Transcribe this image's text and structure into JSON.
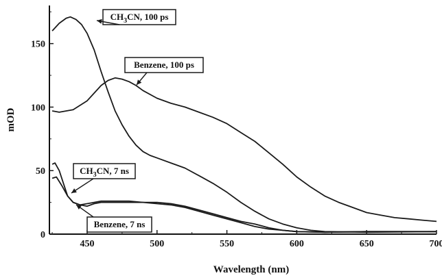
{
  "chart_data": {
    "type": "line",
    "title": "",
    "xlabel": "Wavelength (nm)",
    "ylabel": "mOD",
    "xlim": [
      423,
      700
    ],
    "ylim": [
      0,
      180
    ],
    "xticks": [
      450,
      500,
      550,
      600,
      650,
      700
    ],
    "yticks": [
      0,
      50,
      100,
      150
    ],
    "grid": false,
    "colors": {
      "line": "#1a1a1a",
      "background": "#ffffff"
    },
    "annotations": [
      {
        "id": "ann-ch3cn-100ps",
        "parts": [
          [
            "CH",
            false
          ],
          [
            "3",
            true
          ],
          [
            "CN, 100 ps",
            false
          ]
        ]
      },
      {
        "id": "ann-benzene-100ps",
        "parts": [
          [
            "Benzene, 100 ps",
            false
          ]
        ]
      },
      {
        "id": "ann-ch3cn-7ns",
        "parts": [
          [
            "CH",
            false
          ],
          [
            "3",
            true
          ],
          [
            "CN, 7 ns",
            false
          ]
        ]
      },
      {
        "id": "ann-benzene-7ns",
        "parts": [
          [
            "Benzene, 7 ns",
            false
          ]
        ]
      }
    ],
    "series": [
      {
        "id": "ch3cn-100ps",
        "x": [
          425,
          430,
          435,
          438,
          442,
          446,
          450,
          455,
          460,
          465,
          470,
          475,
          480,
          485,
          490,
          495,
          500,
          510,
          520,
          530,
          540,
          550,
          560,
          570,
          580,
          590,
          600,
          610,
          620,
          650,
          700
        ],
        "y": [
          160,
          166,
          170,
          171,
          169,
          165,
          158,
          145,
          128,
          112,
          97,
          86,
          77,
          70,
          65,
          62,
          60,
          56,
          52,
          46,
          40,
          33,
          25,
          18,
          12,
          8,
          5,
          3,
          2,
          1.5,
          2
        ]
      },
      {
        "id": "benzene-100ps",
        "x": [
          425,
          430,
          440,
          450,
          455,
          460,
          465,
          470,
          475,
          480,
          485,
          490,
          500,
          510,
          520,
          530,
          540,
          550,
          560,
          570,
          580,
          590,
          600,
          610,
          620,
          630,
          640,
          650,
          660,
          670,
          680,
          690,
          700
        ],
        "y": [
          97,
          96,
          98,
          105,
          111,
          117,
          121,
          123,
          122,
          120,
          117,
          113,
          107,
          103,
          100,
          96,
          92,
          87,
          80,
          73,
          64,
          55,
          45,
          37,
          30,
          25,
          21,
          17,
          15,
          13,
          12,
          11,
          10
        ]
      },
      {
        "id": "ch3cn-7ns",
        "x": [
          425,
          427,
          430,
          433,
          436,
          440,
          445,
          450,
          455,
          460,
          470,
          480,
          490,
          500,
          510,
          520,
          530,
          540,
          550,
          560,
          570,
          580,
          590,
          600,
          620,
          650,
          700
        ],
        "y": [
          55,
          56,
          50,
          40,
          30,
          25,
          23,
          24,
          25,
          26,
          26,
          26,
          25,
          25,
          24,
          22,
          19,
          16,
          13,
          10,
          8,
          5,
          3,
          2,
          1.5,
          2,
          2
        ]
      },
      {
        "id": "benzene-7ns",
        "x": [
          425,
          428,
          432,
          436,
          440,
          445,
          450,
          455,
          460,
          470,
          480,
          490,
          500,
          510,
          520,
          530,
          540,
          550,
          560,
          570,
          580,
          590,
          600,
          620,
          650,
          700
        ],
        "y": [
          44,
          45,
          38,
          30,
          25,
          23,
          22,
          24,
          25,
          25,
          25,
          25,
          24,
          23,
          21,
          18,
          15,
          12,
          9,
          6,
          4,
          3,
          2,
          1.5,
          2,
          2
        ]
      }
    ]
  }
}
